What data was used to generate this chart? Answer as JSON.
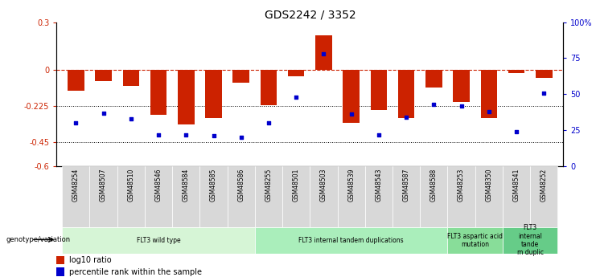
{
  "title": "GDS2242 / 3352",
  "samples": [
    "GSM48254",
    "GSM48507",
    "GSM48510",
    "GSM48546",
    "GSM48584",
    "GSM48585",
    "GSM48586",
    "GSM48255",
    "GSM48501",
    "GSM48503",
    "GSM48539",
    "GSM48543",
    "GSM48587",
    "GSM48588",
    "GSM48253",
    "GSM48350",
    "GSM48541",
    "GSM48252"
  ],
  "log10_ratio": [
    -0.13,
    -0.07,
    -0.1,
    -0.28,
    -0.34,
    -0.3,
    -0.08,
    -0.22,
    -0.04,
    0.22,
    -0.33,
    -0.25,
    -0.3,
    -0.11,
    -0.2,
    -0.3,
    -0.02,
    -0.05
  ],
  "percentile_rank": [
    30,
    37,
    33,
    22,
    22,
    21,
    20,
    30,
    48,
    78,
    36,
    22,
    34,
    43,
    42,
    38,
    24,
    51
  ],
  "ylim_left": [
    -0.6,
    0.3
  ],
  "ylim_right": [
    0,
    100
  ],
  "yticks_left": [
    -0.6,
    -0.45,
    -0.225,
    0.0,
    0.3
  ],
  "yticks_right": [
    0,
    25,
    50,
    75,
    100
  ],
  "ytick_labels_left": [
    "-0.6",
    "-0.45",
    "-0.225",
    "0",
    "0.3"
  ],
  "ytick_labels_right": [
    "0",
    "25",
    "50",
    "75",
    "100%"
  ],
  "hline_y": 0.0,
  "dotted_lines": [
    -0.225,
    -0.45
  ],
  "bar_color": "#cc2200",
  "scatter_color": "#0000cc",
  "groups": [
    {
      "label": "FLT3 wild type",
      "start": 0,
      "end": 7,
      "color": "#d6f5d6"
    },
    {
      "label": "FLT3 internal tandem duplications",
      "start": 7,
      "end": 14,
      "color": "#aaeebb"
    },
    {
      "label": "FLT3 aspartic acid\nmutation",
      "start": 14,
      "end": 16,
      "color": "#88dd99"
    },
    {
      "label": "FLT3\ninternal\ntande\nm duplic",
      "start": 16,
      "end": 18,
      "color": "#66cc88"
    }
  ],
  "legend_bar_label": "log10 ratio",
  "legend_scatter_label": "percentile rank within the sample",
  "genotype_label": "genotype/variation"
}
